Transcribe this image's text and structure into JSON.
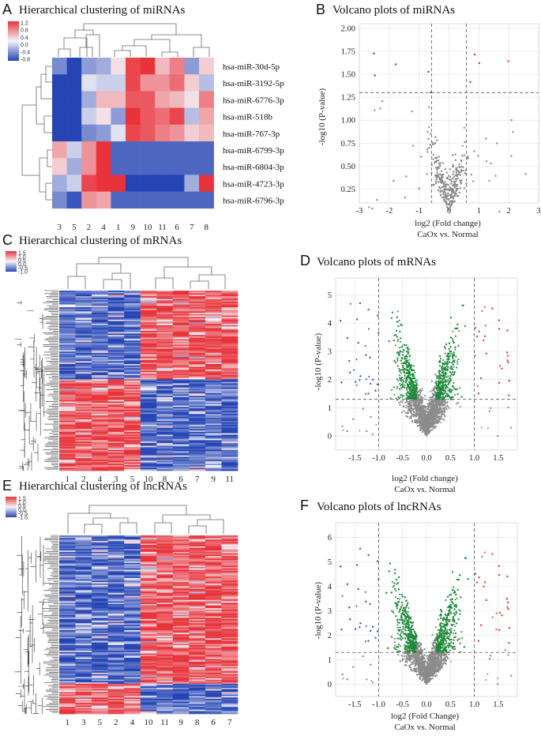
{
  "panels": {
    "A": {
      "letter": "A",
      "title": "Hierarchical clustering of miRNAs",
      "colorbar_ticks": [
        "1.2",
        "0.8",
        "0.4",
        "0.0",
        "-0.4",
        "-0.8"
      ],
      "rows": [
        "hsa-miR-30d-5p",
        "hsa-miR-3192-5p",
        "hsa-miR-6776-3p",
        "hsa-miR-518b",
        "hsa-miR-767-3p",
        "hsa-miR-6799-3p",
        "hsa-miR-6804-3p",
        "hsa-miR-4723-3p",
        "hsa-miR-6796-3p"
      ],
      "cols": [
        "3",
        "5",
        "2",
        "4",
        "1",
        "9",
        "10",
        "11",
        "6",
        "7",
        "8"
      ],
      "values": [
        [
          -0.6,
          -1.0,
          -0.5,
          -0.4,
          0.1,
          0.9,
          1.2,
          0.3,
          0.6,
          -0.5,
          0.2
        ],
        [
          -1.0,
          -1.0,
          -0.1,
          -0.2,
          -0.2,
          0.9,
          0.5,
          0.5,
          0.7,
          0.2,
          -0.3
        ],
        [
          -1.0,
          -1.0,
          -0.4,
          0.3,
          0.3,
          0.8,
          0.8,
          0.4,
          0.3,
          0.1,
          0.6
        ],
        [
          -1.0,
          -1.0,
          -0.2,
          0.1,
          -0.5,
          1.0,
          0.8,
          0.7,
          0.9,
          -0.3,
          0.4
        ],
        [
          -1.0,
          -1.0,
          -0.6,
          -0.5,
          -0.1,
          0.9,
          0.8,
          0.6,
          0.5,
          0.2,
          0.3
        ],
        [
          0.4,
          -0.2,
          0.5,
          1.0,
          -0.8,
          -0.8,
          -0.8,
          -0.8,
          -0.8,
          -0.8,
          -0.8
        ],
        [
          0.2,
          -0.4,
          0.5,
          1.1,
          -0.8,
          -0.8,
          -0.8,
          -0.8,
          -0.8,
          -0.8,
          -0.8
        ],
        [
          -0.4,
          -0.2,
          0.9,
          1.0,
          1.2,
          -1.0,
          -1.0,
          -1.0,
          -1.0,
          -0.4,
          1.2
        ],
        [
          -0.6,
          -0.9,
          0.5,
          0.4,
          -0.8,
          -0.8,
          -0.8,
          -0.8,
          -0.8,
          -0.8,
          -0.8
        ]
      ]
    },
    "B": {
      "letter": "B",
      "title": "Volcano plots of miRNAs",
      "xlabel": "log2 (Fold change)",
      "xlabel2": "CaOx vs. Normal",
      "ylabel": "-log10 (P-value)",
      "xticks": [
        "-3",
        "-2",
        "-1",
        "0",
        "1",
        "2",
        "3"
      ],
      "yticks": [
        "0.25",
        "0.50",
        "0.75",
        "1.00",
        "1.25",
        "1.50",
        "1.75",
        "2.00"
      ]
    },
    "C": {
      "letter": "C",
      "title": "Hierarchical clustering of mRNAs",
      "colorbar_ticks": [
        "1.5",
        "1.0",
        "0.5",
        "0.0",
        "-0.5",
        "-1.0"
      ],
      "cols": [
        "1",
        "2",
        "4",
        "3",
        "5",
        "10",
        "8",
        "6",
        "7",
        "9",
        "11"
      ]
    },
    "D": {
      "letter": "D",
      "title": "Volcano plots of mRNAs",
      "xlabel": "log2 (Fold change)",
      "xlabel2": "CaOx vs. Normal",
      "ylabel": "-log10 (P-value)",
      "xticks": [
        "-1.5",
        "-1.0",
        "-0.5",
        "0.0",
        "0.5",
        "1.0",
        "1.5"
      ],
      "yticks": [
        "0",
        "1",
        "2",
        "3",
        "4",
        "5"
      ]
    },
    "E": {
      "letter": "E",
      "title": "Hierarchical clustering of lncRNAs",
      "colorbar_ticks": [
        "1.5",
        "1.0",
        "0.5",
        "0.0",
        "-0.5",
        "-1.0"
      ],
      "cols": [
        "1",
        "3",
        "5",
        "2",
        "4",
        "10",
        "11",
        "9",
        "8",
        "6",
        "7"
      ]
    },
    "F": {
      "letter": "F",
      "title": "Volcano plots of lncRNAs",
      "xlabel": "log2 (Fold Change)",
      "xlabel2": "CaOx vs. Normal",
      "ylabel": "-log10 (P-value)",
      "xticks": [
        "-1.5",
        "-1.0",
        "-0.5",
        "0.0",
        "0.5",
        "1.0",
        "1.5"
      ],
      "yticks": [
        "0",
        "1",
        "2",
        "3",
        "4",
        "5",
        "6"
      ]
    }
  },
  "colors": {
    "up": "#e8302a",
    "down": "#2f52c2",
    "sig": "#1f8a3c",
    "ns": "#8c8c8c",
    "high": "#e8333a",
    "low": "#2545b5",
    "mid": "#f4f3f7"
  }
}
